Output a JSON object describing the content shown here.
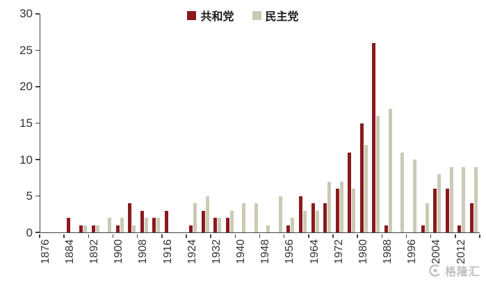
{
  "legend": [
    {
      "label": "共和党",
      "color": "#8a1a1e"
    },
    {
      "label": "民主党",
      "color": "#ccc9b4"
    }
  ],
  "watermark": {
    "text": "格隆汇"
  },
  "axes": {
    "axis_color": "#404040",
    "label_color": "#333333"
  },
  "chart_data": {
    "type": "bar",
    "title": "",
    "xlabel": "",
    "ylabel": "",
    "x": [
      1876,
      1880,
      1884,
      1888,
      1892,
      1896,
      1900,
      1904,
      1908,
      1912,
      1916,
      1920,
      1924,
      1928,
      1932,
      1936,
      1940,
      1944,
      1948,
      1952,
      1956,
      1960,
      1964,
      1968,
      1972,
      1976,
      1980,
      1984,
      1988,
      1992,
      1996,
      2000,
      2004,
      2008,
      2012,
      2016
    ],
    "series": [
      {
        "name": "共和党",
        "color": "#8a1a1e",
        "values": [
          0,
          0,
          2,
          1,
          1,
          0,
          1,
          4,
          3,
          2,
          3,
          0,
          1,
          3,
          2,
          2,
          0,
          0,
          0,
          0,
          1,
          5,
          4,
          4,
          6,
          11,
          15,
          26,
          1,
          0,
          0,
          1,
          6,
          6,
          1,
          4
        ]
      },
      {
        "name": "民主党",
        "color": "#ccc9b4",
        "values": [
          0,
          0,
          0,
          1,
          1,
          2,
          2,
          1,
          2,
          2,
          0,
          0,
          4,
          5,
          2,
          3,
          4,
          4,
          1,
          5,
          2,
          3,
          3,
          7,
          7,
          6,
          12,
          16,
          17,
          11,
          10,
          4,
          8,
          9,
          9,
          9
        ]
      }
    ],
    "ylim": [
      0,
      30
    ],
    "yticks": [
      0,
      5,
      10,
      15,
      20,
      25,
      30
    ],
    "xtick_labels": [
      1876,
      1884,
      1892,
      1900,
      1908,
      1916,
      1924,
      1932,
      1940,
      1948,
      1956,
      1964,
      1972,
      1980,
      1988,
      1996,
      2004,
      2012
    ],
    "grid": false,
    "legend_position": "top-center"
  }
}
